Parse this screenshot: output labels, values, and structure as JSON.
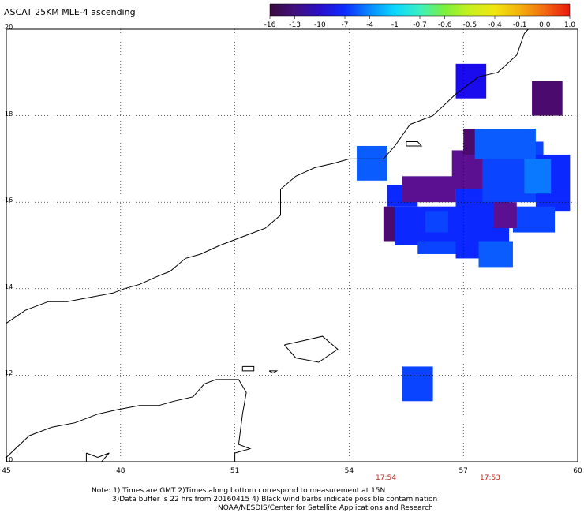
{
  "title": "ASCAT 25KM MLE-4 ascending",
  "colorbar": {
    "ticks": [
      "-16",
      "-13",
      "-10",
      "-7",
      "-4",
      "-1",
      "-0.7",
      "-0.6",
      "-0.5",
      "-0.4",
      "-0.1",
      "0.0",
      "1.0"
    ],
    "stops": [
      "#3a0a3e",
      "#42107c",
      "#2a10c8",
      "#0a2cff",
      "#0a8aff",
      "#0ad8ff",
      "#3cf0c0",
      "#7cf03a",
      "#c8f020",
      "#f0e610",
      "#f4b00e",
      "#f26a10",
      "#e8180c"
    ]
  },
  "map": {
    "lat_labels": [
      "20",
      "18",
      "16",
      "14",
      "12",
      "10"
    ],
    "lon_labels": [
      "45",
      "48",
      "51",
      "54",
      "57",
      "60"
    ],
    "lat_range": [
      10,
      20
    ],
    "lon_range": [
      45,
      60
    ],
    "coast_color": "#000000",
    "grid_style": "dotted"
  },
  "times": [
    "17:54",
    "17:53"
  ],
  "notes": [
    "Note: 1) Times are GMT 2)Times along bottom correspond to measurement at 15N",
    "3)Data buffer is 22 hrs from 20160415 4) Black wind barbs indicate possible contamination",
    "NOAA/NESDIS/Center for Satellite Applications and Research"
  ],
  "data_colors": {
    "deep_purple": "#4a0a6e",
    "violet": "#5a1090",
    "blue_dark": "#1a0aee",
    "blue": "#0a28ff",
    "blue_mid": "#0a44ff",
    "blue_light": "#0a5cff",
    "sky": "#0a78ff"
  },
  "cells": [
    {
      "lon": 56.8,
      "lat": 18.4,
      "w": 0.8,
      "h": 0.8,
      "c": "blue_dark"
    },
    {
      "lon": 58.8,
      "lat": 18.0,
      "w": 0.8,
      "h": 0.8,
      "c": "deep_purple"
    },
    {
      "lon": 54.2,
      "lat": 16.5,
      "w": 0.8,
      "h": 0.8,
      "c": "blue_light"
    },
    {
      "lon": 55.4,
      "lat": 11.4,
      "w": 0.8,
      "h": 0.8,
      "c": "blue_mid"
    },
    {
      "lon": 55.0,
      "lat": 15.9,
      "w": 0.8,
      "h": 0.5,
      "c": "blue"
    },
    {
      "lon": 55.4,
      "lat": 16.0,
      "w": 1.4,
      "h": 0.6,
      "c": "violet"
    },
    {
      "lon": 54.9,
      "lat": 15.1,
      "w": 0.3,
      "h": 0.8,
      "c": "deep_purple"
    },
    {
      "lon": 55.2,
      "lat": 15.0,
      "w": 1.8,
      "h": 0.9,
      "c": "blue"
    },
    {
      "lon": 55.8,
      "lat": 14.8,
      "w": 1.2,
      "h": 0.3,
      "c": "blue_mid"
    },
    {
      "lon": 56.8,
      "lat": 14.7,
      "w": 1.4,
      "h": 1.8,
      "c": "blue"
    },
    {
      "lon": 56.7,
      "lat": 16.3,
      "w": 0.9,
      "h": 0.9,
      "c": "violet"
    },
    {
      "lon": 57.0,
      "lat": 17.1,
      "w": 0.5,
      "h": 0.6,
      "c": "deep_purple"
    },
    {
      "lon": 57.5,
      "lat": 16.0,
      "w": 1.6,
      "h": 1.4,
      "c": "blue_mid"
    },
    {
      "lon": 57.3,
      "lat": 17.0,
      "w": 1.6,
      "h": 0.7,
      "c": "blue_light"
    },
    {
      "lon": 58.9,
      "lat": 15.8,
      "w": 0.9,
      "h": 1.3,
      "c": "blue"
    },
    {
      "lon": 58.3,
      "lat": 15.3,
      "w": 1.1,
      "h": 0.6,
      "c": "blue_mid"
    },
    {
      "lon": 57.4,
      "lat": 14.5,
      "w": 0.9,
      "h": 0.6,
      "c": "blue_light"
    },
    {
      "lon": 58.6,
      "lat": 16.2,
      "w": 0.7,
      "h": 0.8,
      "c": "sky"
    },
    {
      "lon": 56.0,
      "lat": 15.3,
      "w": 0.6,
      "h": 0.5,
      "c": "blue_mid"
    },
    {
      "lon": 57.8,
      "lat": 15.4,
      "w": 0.6,
      "h": 0.6,
      "c": "violet"
    }
  ],
  "coastlines": [
    [
      [
        45.0,
        13.2
      ],
      [
        45.5,
        13.5
      ],
      [
        46.1,
        13.7
      ],
      [
        46.6,
        13.7
      ],
      [
        47.2,
        13.8
      ],
      [
        47.8,
        13.9
      ],
      [
        48.1,
        14.0
      ],
      [
        48.5,
        14.1
      ],
      [
        49.0,
        14.3
      ],
      [
        49.3,
        14.4
      ],
      [
        49.7,
        14.7
      ],
      [
        50.1,
        14.8
      ],
      [
        50.6,
        15.0
      ],
      [
        51.2,
        15.2
      ],
      [
        51.8,
        15.4
      ],
      [
        52.2,
        15.7
      ],
      [
        52.2,
        16.3
      ],
      [
        52.6,
        16.6
      ],
      [
        53.1,
        16.8
      ],
      [
        53.6,
        16.9
      ],
      [
        54.0,
        17.0
      ],
      [
        54.4,
        17.0
      ],
      [
        54.9,
        17.0
      ],
      [
        55.2,
        17.3
      ],
      [
        55.6,
        17.8
      ],
      [
        56.2,
        18.0
      ],
      [
        56.8,
        18.5
      ],
      [
        57.4,
        18.9
      ],
      [
        57.9,
        19.0
      ],
      [
        58.4,
        19.4
      ],
      [
        58.6,
        19.9
      ],
      [
        58.7,
        20.0
      ]
    ],
    [
      [
        45.0,
        10.1
      ],
      [
        45.6,
        10.6
      ],
      [
        46.2,
        10.8
      ],
      [
        46.8,
        10.9
      ],
      [
        47.4,
        11.1
      ],
      [
        47.9,
        11.2
      ],
      [
        48.5,
        11.3
      ],
      [
        49.0,
        11.3
      ],
      [
        49.4,
        11.4
      ],
      [
        49.9,
        11.5
      ],
      [
        50.2,
        11.8
      ],
      [
        50.5,
        11.9
      ],
      [
        51.1,
        11.9
      ],
      [
        51.3,
        11.6
      ],
      [
        51.2,
        11.1
      ],
      [
        51.1,
        10.4
      ],
      [
        51.4,
        10.3
      ],
      [
        51.0,
        10.2
      ],
      [
        51.0,
        10.0
      ]
    ]
  ],
  "islands": [
    [
      [
        52.3,
        12.7
      ],
      [
        52.8,
        12.8
      ],
      [
        53.3,
        12.9
      ],
      [
        53.7,
        12.6
      ],
      [
        53.2,
        12.3
      ],
      [
        52.6,
        12.4
      ],
      [
        52.3,
        12.7
      ]
    ],
    [
      [
        51.2,
        12.2
      ],
      [
        51.5,
        12.2
      ],
      [
        51.5,
        12.1
      ],
      [
        51.2,
        12.1
      ],
      [
        51.2,
        12.2
      ]
    ],
    [
      [
        51.9,
        12.1
      ],
      [
        52.1,
        12.1
      ],
      [
        52.0,
        12.05
      ],
      [
        51.9,
        12.1
      ]
    ],
    [
      [
        47.1,
        10.2
      ],
      [
        47.4,
        10.1
      ],
      [
        47.7,
        10.2
      ],
      [
        47.5,
        10.0
      ],
      [
        47.1,
        10.0
      ],
      [
        47.1,
        10.2
      ]
    ],
    [
      [
        55.5,
        17.4
      ],
      [
        55.8,
        17.4
      ],
      [
        55.9,
        17.3
      ],
      [
        55.5,
        17.3
      ],
      [
        55.5,
        17.4
      ]
    ]
  ]
}
